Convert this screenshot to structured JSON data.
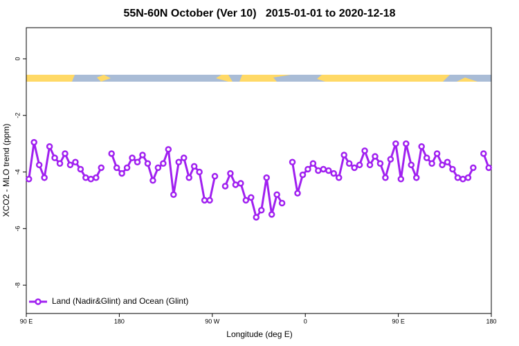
{
  "chart_data": {
    "type": "line",
    "title": "55N-60N October (Ver 10)   2015-01-01 to 2020-12-18",
    "x_label": "Longitude (deg E)",
    "y_label": "XCO2 - MLO trend (ppm)",
    "xlim": [
      90,
      540
    ],
    "ylim": [
      -9,
      1.1
    ],
    "xticks": [
      {
        "value": 90,
        "label": "90 E"
      },
      {
        "value": 180,
        "label": "180"
      },
      {
        "value": 270,
        "label": "90 W"
      },
      {
        "value": 360,
        "label": "0"
      },
      {
        "value": 450,
        "label": "90 E"
      },
      {
        "value": 540,
        "label": "180"
      }
    ],
    "yticks": [
      0,
      -2,
      -4,
      -6,
      -8
    ],
    "grid": false,
    "legend": "bottomleft",
    "x": [
      92.5,
      97.5,
      102.5,
      107.5,
      112.5,
      117.5,
      122.5,
      127.5,
      132.5,
      137.5,
      142.5,
      147.5,
      152.5,
      157.5,
      162.5,
      167.5,
      172.5,
      177.5,
      182.5,
      187.5,
      192.5,
      197.5,
      202.5,
      207.5,
      212.5,
      217.5,
      222.5,
      227.5,
      232.5,
      237.5,
      242.5,
      247.5,
      252.5,
      257.5,
      262.5,
      267.5,
      272.5,
      277.5,
      282.5,
      287.5,
      292.5,
      297.5,
      302.5,
      307.5,
      312.5,
      317.5,
      322.5,
      327.5,
      332.5,
      337.5,
      342.5,
      347.5,
      352.5,
      357.5,
      362.5,
      367.5,
      372.5,
      377.5,
      382.5,
      387.5,
      392.5,
      397.5,
      402.5,
      407.5,
      412.5,
      417.5,
      422.5,
      427.5,
      432.5,
      437.5,
      442.5,
      447.5,
      452.5,
      457.5,
      462.5,
      467.5,
      472.5,
      477.5,
      482.5,
      487.5,
      492.5,
      497.5,
      502.5,
      507.5,
      512.5,
      517.5,
      522.5,
      527.5,
      532.5,
      537.5
    ],
    "series": [
      {
        "name": "Land (Nadir&Glint) and Ocean (Glint)",
        "color": "#a020f0",
        "values": [
          -4.25,
          -2.95,
          -3.75,
          -4.2,
          -3.1,
          -3.5,
          -3.7,
          -3.35,
          -3.75,
          -3.65,
          -3.9,
          -4.2,
          -4.25,
          -4.2,
          -3.85,
          null,
          -3.35,
          -3.85,
          -4.05,
          -3.85,
          -3.5,
          -3.65,
          -3.4,
          -3.7,
          -4.3,
          -3.85,
          -3.7,
          -3.2,
          -4.8,
          -3.65,
          -3.5,
          -4.2,
          -3.8,
          -4.0,
          -5.0,
          -5.0,
          -4.15,
          null,
          -4.5,
          -4.05,
          -4.45,
          -4.4,
          -5.0,
          -4.9,
          -5.6,
          -5.35,
          -4.2,
          -5.5,
          -4.8,
          -5.1,
          null,
          -3.65,
          -4.75,
          -4.1,
          -3.9,
          -3.7,
          -3.95,
          -3.9,
          -3.95,
          -4.05,
          -4.2,
          -3.4,
          -3.7,
          -3.85,
          -3.75,
          -3.25,
          -3.75,
          -3.45,
          -3.7,
          -4.2,
          -3.55,
          -3.0,
          -4.25,
          -3.0,
          -3.75,
          -4.2,
          -3.1,
          -3.5,
          -3.7,
          -3.35,
          -3.75,
          -3.65,
          -3.9,
          -4.2,
          -4.25,
          -4.2,
          -3.85,
          null,
          -3.35,
          -3.85
        ]
      }
    ]
  }
}
